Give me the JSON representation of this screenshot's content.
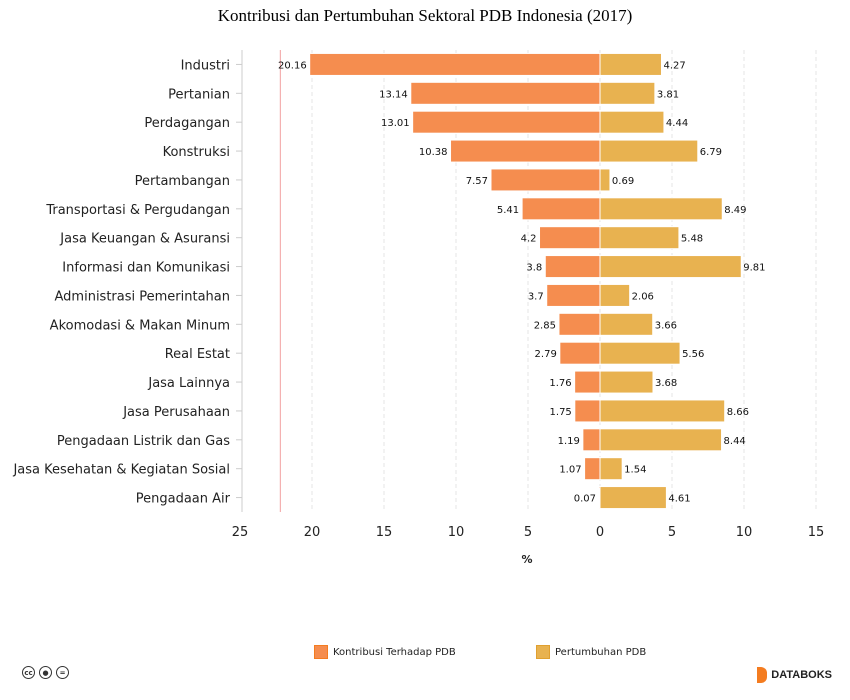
{
  "chart_data": {
    "type": "bar",
    "orientation": "horizontal-diverging",
    "title": "Kontribusi dan Pertumbuhan Sektoral PDB Indonesia (2017)",
    "xlabel": "%",
    "xlim": [
      -25,
      15
    ],
    "x_ticks": [
      "25",
      "20",
      "15",
      "10",
      "5",
      "0",
      "5",
      "10",
      "15"
    ],
    "grid": "vertical dashed",
    "legend_position": "bottom-center",
    "reference_line": -22.2,
    "categories": [
      "Industri",
      "Pertanian",
      "Perdagangan",
      "Konstruksi",
      "Pertambangan",
      "Transportasi & Pergudangan",
      "Jasa Keuangan & Asuransi",
      "Informasi dan Komunikasi",
      "Administrasi Pemerintahan",
      "Akomodasi & Makan Minum",
      "Real Estat",
      "Jasa Lainnya",
      "Jasa Perusahaan",
      "Pengadaan Listrik dan Gas",
      "Jasa Kesehatan & Kegiatan Sosial",
      "Pengadaan Air"
    ],
    "series": [
      {
        "name": "Kontribusi Terhadap PDB",
        "color": "#f58d4f",
        "direction": "left",
        "values": [
          20.16,
          13.14,
          13.01,
          10.38,
          7.57,
          5.41,
          4.2,
          3.8,
          3.7,
          2.85,
          2.79,
          1.76,
          1.75,
          1.19,
          1.07,
          0.07
        ]
      },
      {
        "name": "Pertumbuhan PDB",
        "color": "#e8b250",
        "direction": "right",
        "values": [
          4.27,
          3.81,
          4.44,
          6.79,
          0.69,
          8.49,
          5.48,
          9.81,
          2.06,
          3.66,
          5.56,
          3.68,
          8.66,
          8.44,
          1.54,
          4.61
        ]
      }
    ]
  },
  "footer": {
    "brand": "DATABOKS",
    "license_icons": [
      "cc",
      "by",
      "nd"
    ]
  }
}
